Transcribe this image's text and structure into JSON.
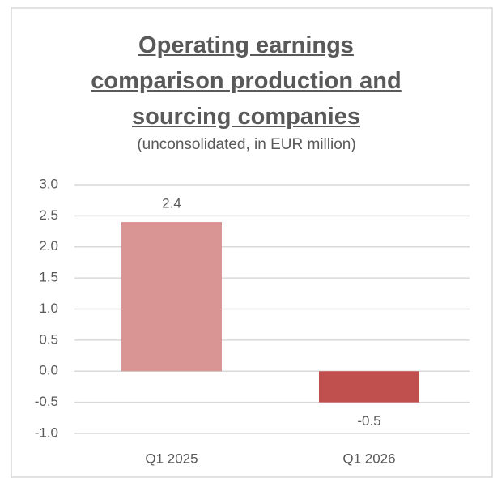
{
  "chart_data": {
    "type": "bar",
    "title": "Operating earnings comparison production and sourcing companies",
    "subtitle": "(unconsolidated, in EUR million)",
    "categories": [
      "Q1 2025",
      "Q1 2026"
    ],
    "values": [
      2.4,
      -0.5
    ],
    "colors": [
      "#d99594",
      "#c0504d"
    ],
    "ylim": [
      -1.0,
      3.0
    ],
    "yticks": [
      {
        "value": -1.0,
        "label": "-1.0"
      },
      -0.5,
      {
        "value": 0.0,
        "label": "0.0"
      },
      0.5,
      {
        "value": 1.0,
        "label": "1.0"
      },
      1.5,
      {
        "value": 2.0,
        "label": "2.0"
      },
      2.5,
      {
        "value": 3.0,
        "label": "3.0"
      }
    ],
    "grid": true
  }
}
